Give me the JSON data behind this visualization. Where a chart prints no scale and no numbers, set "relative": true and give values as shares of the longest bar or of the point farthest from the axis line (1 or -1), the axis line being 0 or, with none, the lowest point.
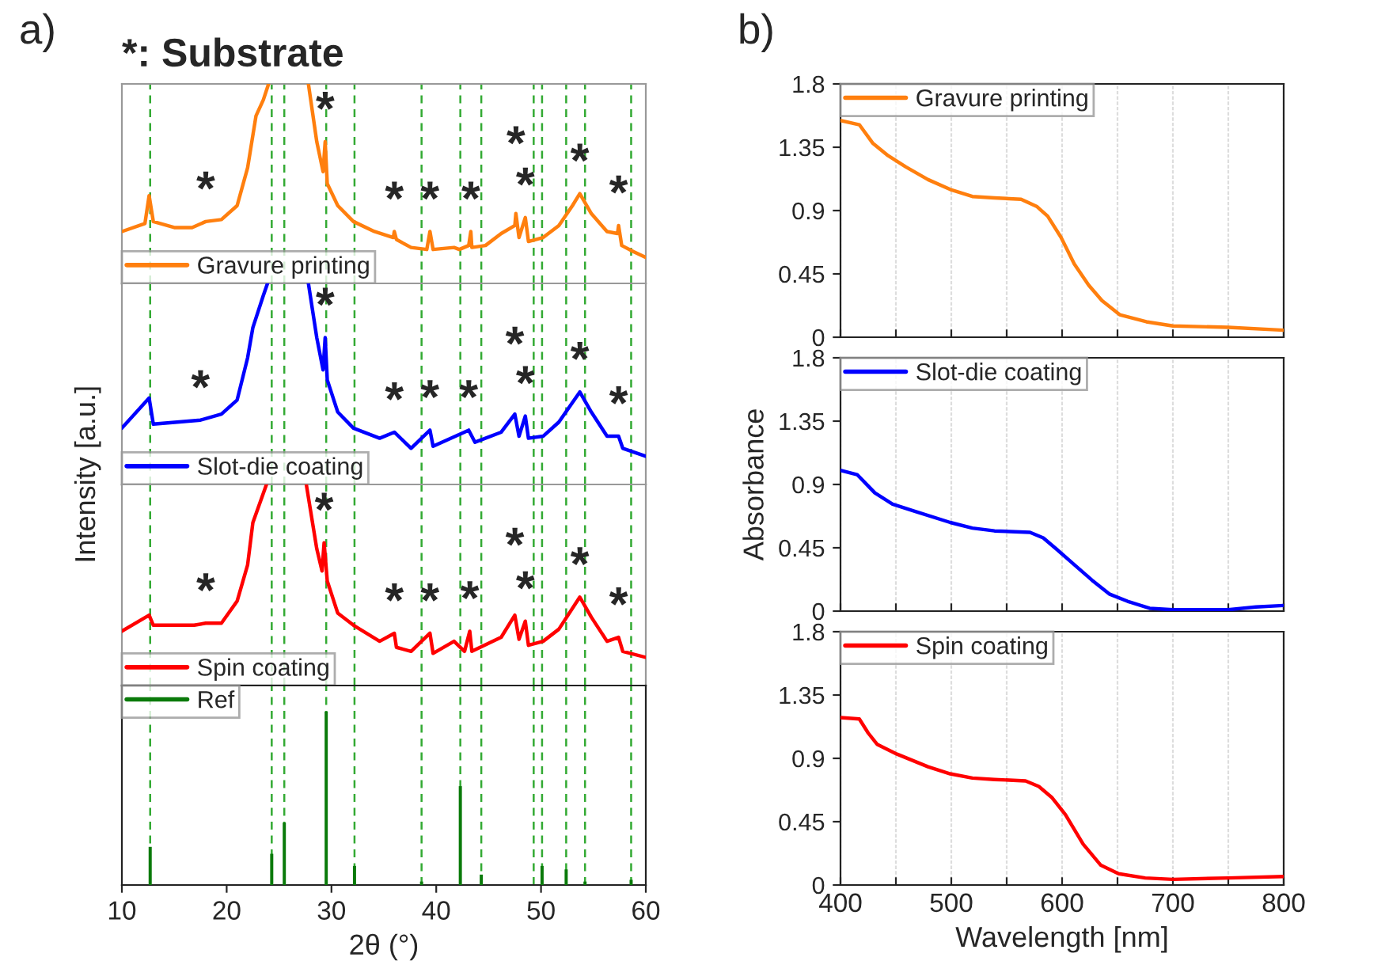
{
  "chart_data": [
    {
      "type": "line",
      "title": "*: Substrate",
      "relative": true,
      "xlim": [
        10,
        60
      ],
      "tick_labels": false,
      "legend": "bottom left",
      "annotations": [
        "a)",
        {
          "text": "*",
          "x": 18,
          "y": 0.31
        },
        {
          "text": "*",
          "x": 29.4,
          "y": 0.71
        },
        {
          "text": "*",
          "x": 36,
          "y": 0.26
        },
        {
          "text": "*",
          "x": 39.4,
          "y": 0.26
        },
        {
          "text": "*",
          "x": 43.3,
          "y": 0.26
        },
        {
          "text": "*",
          "x": 47.6,
          "y": 0.35
        },
        {
          "text": "*",
          "x": 48.5,
          "y": 0.33
        },
        {
          "text": "*",
          "x": 53.7,
          "y": 0.45
        },
        {
          "text": "*",
          "x": 57.4,
          "y": 0.29
        }
      ],
      "ref_lines": [
        {
          "axis": "x",
          "value": 12.7,
          "color": "#33aa33",
          "line_style": "dashed"
        },
        {
          "axis": "x",
          "value": 24.3,
          "color": "#33aa33",
          "line_style": "dashed"
        },
        {
          "axis": "x",
          "value": 25.5,
          "color": "#33aa33",
          "line_style": "dashed"
        },
        {
          "axis": "x",
          "value": 29.5,
          "color": "#33aa33",
          "line_style": "dashed"
        },
        {
          "axis": "x",
          "value": 32.2,
          "color": "#33aa33",
          "line_style": "dashed"
        },
        {
          "axis": "x",
          "value": 38.6,
          "color": "#33aa33",
          "line_style": "dashed"
        },
        {
          "axis": "x",
          "value": 42.3,
          "color": "#33aa33",
          "line_style": "dashed"
        },
        {
          "axis": "x",
          "value": 44.3,
          "color": "#33aa33",
          "line_style": "dashed"
        },
        {
          "axis": "x",
          "value": 49.3,
          "color": "#33aa33",
          "line_style": "dashed"
        },
        {
          "axis": "x",
          "value": 50.1,
          "color": "#33aa33",
          "line_style": "dashed"
        },
        {
          "axis": "x",
          "value": 52.4,
          "color": "#33aa33",
          "line_style": "dashed"
        },
        {
          "axis": "x",
          "value": 54.2,
          "color": "#33aa33",
          "line_style": "dashed"
        },
        {
          "axis": "x",
          "value": 58.6,
          "color": "#33aa33",
          "line_style": "dashed"
        }
      ],
      "series": [
        {
          "name": "Gravure printing",
          "color": "#ff7f0e",
          "x": [
            10,
            12.2,
            12.6,
            13,
            15,
            16.7,
            18,
            19.5,
            21,
            22,
            22.8,
            23.5,
            24,
            null,
            27.8,
            28.6,
            29.2,
            29.4,
            29.6,
            30.6,
            32.1,
            34.1,
            35.9,
            36,
            36.2,
            37.6,
            39.1,
            39.4,
            39.7,
            41.7,
            42.2,
            43.1,
            43.3,
            43.4,
            44.7,
            46.2,
            47.5,
            47.6,
            47.9,
            48.5,
            48.8,
            50.2,
            51.7,
            53,
            53.7,
            54.8,
            56.3,
            57.3,
            57.4,
            57.7,
            58.8,
            60
          ],
          "values": [
            0.26,
            0.3,
            0.44,
            0.31,
            0.28,
            0.28,
            0.31,
            0.32,
            0.39,
            0.58,
            0.84,
            0.92,
            1.0,
            null,
            1.0,
            0.71,
            0.56,
            0.71,
            0.5,
            0.39,
            0.31,
            0.26,
            0.23,
            0.26,
            0.22,
            0.18,
            0.17,
            0.26,
            0.17,
            0.18,
            0.17,
            0.19,
            0.26,
            0.18,
            0.19,
            0.25,
            0.29,
            0.35,
            0.23,
            0.33,
            0.21,
            0.23,
            0.29,
            0.39,
            0.45,
            0.35,
            0.26,
            0.25,
            0.29,
            0.19,
            0.16,
            0.13
          ]
        }
      ]
    },
    {
      "type": "line",
      "ylabel": "Intensity [a.u.]",
      "relative": true,
      "xlim": [
        10,
        60
      ],
      "tick_labels": false,
      "legend": "bottom left",
      "annotations": [
        {
          "text": "*",
          "x": 17.5,
          "y": 0.32
        },
        {
          "text": "*",
          "x": 29.4,
          "y": 0.73
        },
        {
          "text": "*",
          "x": 36,
          "y": 0.26
        },
        {
          "text": "*",
          "x": 39.4,
          "y": 0.27
        },
        {
          "text": "*",
          "x": 43.1,
          "y": 0.27
        },
        {
          "text": "*",
          "x": 47.5,
          "y": 0.35
        },
        {
          "text": "*",
          "x": 48.5,
          "y": 0.34
        },
        {
          "text": "*",
          "x": 53.7,
          "y": 0.46
        },
        {
          "text": "*",
          "x": 57.4,
          "y": 0.24
        }
      ],
      "ref_lines": [
        {
          "axis": "x",
          "value": 12.7,
          "color": "#33aa33",
          "line_style": "dashed"
        },
        {
          "axis": "x",
          "value": 24.3,
          "color": "#33aa33",
          "line_style": "dashed"
        },
        {
          "axis": "x",
          "value": 25.5,
          "color": "#33aa33",
          "line_style": "dashed"
        },
        {
          "axis": "x",
          "value": 29.5,
          "color": "#33aa33",
          "line_style": "dashed"
        },
        {
          "axis": "x",
          "value": 32.2,
          "color": "#33aa33",
          "line_style": "dashed"
        },
        {
          "axis": "x",
          "value": 38.6,
          "color": "#33aa33",
          "line_style": "dashed"
        },
        {
          "axis": "x",
          "value": 42.3,
          "color": "#33aa33",
          "line_style": "dashed"
        },
        {
          "axis": "x",
          "value": 44.3,
          "color": "#33aa33",
          "line_style": "dashed"
        },
        {
          "axis": "x",
          "value": 49.3,
          "color": "#33aa33",
          "line_style": "dashed"
        },
        {
          "axis": "x",
          "value": 50.1,
          "color": "#33aa33",
          "line_style": "dashed"
        },
        {
          "axis": "x",
          "value": 52.4,
          "color": "#33aa33",
          "line_style": "dashed"
        },
        {
          "axis": "x",
          "value": 54.2,
          "color": "#33aa33",
          "line_style": "dashed"
        },
        {
          "axis": "x",
          "value": 58.6,
          "color": "#33aa33",
          "line_style": "dashed"
        }
      ],
      "series": [
        {
          "name": "Slot-die coating",
          "color": "#0000ff",
          "x": [
            10,
            12.6,
            13,
            17.5,
            19.5,
            21,
            22,
            22.5,
            23.5,
            23.9,
            null,
            27.8,
            28.6,
            29.2,
            29.4,
            29.6,
            30.6,
            32.1,
            34.6,
            36,
            37.6,
            39.4,
            39.7,
            43.1,
            43.7,
            46.2,
            47.5,
            47.9,
            48.5,
            48.8,
            50.2,
            51.7,
            53.7,
            54.8,
            56.3,
            57.4,
            57.8,
            60
          ],
          "values": [
            0.28,
            0.43,
            0.3,
            0.32,
            0.35,
            0.42,
            0.63,
            0.78,
            0.94,
            1.0,
            null,
            1.0,
            0.73,
            0.57,
            0.73,
            0.52,
            0.36,
            0.28,
            0.23,
            0.26,
            0.18,
            0.27,
            0.19,
            0.27,
            0.21,
            0.26,
            0.35,
            0.24,
            0.34,
            0.23,
            0.24,
            0.31,
            0.46,
            0.36,
            0.24,
            0.24,
            0.18,
            0.14
          ]
        }
      ]
    },
    {
      "type": "line",
      "relative": true,
      "xlim": [
        10,
        60
      ],
      "tick_labels": false,
      "legend": "bottom left",
      "annotations": [
        {
          "text": "*",
          "x": 18,
          "y": 0.31
        },
        {
          "text": "*",
          "x": 29.3,
          "y": 0.71
        },
        {
          "text": "*",
          "x": 36,
          "y": 0.26
        },
        {
          "text": "*",
          "x": 39.4,
          "y": 0.26
        },
        {
          "text": "*",
          "x": 43.2,
          "y": 0.27
        },
        {
          "text": "*",
          "x": 47.5,
          "y": 0.35
        },
        {
          "text": "*",
          "x": 48.5,
          "y": 0.32
        },
        {
          "text": "*",
          "x": 53.7,
          "y": 0.44
        },
        {
          "text": "*",
          "x": 57.4,
          "y": 0.24
        }
      ],
      "ref_lines": [
        {
          "axis": "x",
          "value": 12.7,
          "color": "#33aa33",
          "line_style": "dashed"
        },
        {
          "axis": "x",
          "value": 24.3,
          "color": "#33aa33",
          "line_style": "dashed"
        },
        {
          "axis": "x",
          "value": 25.5,
          "color": "#33aa33",
          "line_style": "dashed"
        },
        {
          "axis": "x",
          "value": 29.5,
          "color": "#33aa33",
          "line_style": "dashed"
        },
        {
          "axis": "x",
          "value": 32.2,
          "color": "#33aa33",
          "line_style": "dashed"
        },
        {
          "axis": "x",
          "value": 38.6,
          "color": "#33aa33",
          "line_style": "dashed"
        },
        {
          "axis": "x",
          "value": 42.3,
          "color": "#33aa33",
          "line_style": "dashed"
        },
        {
          "axis": "x",
          "value": 44.3,
          "color": "#33aa33",
          "line_style": "dashed"
        },
        {
          "axis": "x",
          "value": 49.3,
          "color": "#33aa33",
          "line_style": "dashed"
        },
        {
          "axis": "x",
          "value": 50.1,
          "color": "#33aa33",
          "line_style": "dashed"
        },
        {
          "axis": "x",
          "value": 52.4,
          "color": "#33aa33",
          "line_style": "dashed"
        },
        {
          "axis": "x",
          "value": 54.2,
          "color": "#33aa33",
          "line_style": "dashed"
        },
        {
          "axis": "x",
          "value": 58.6,
          "color": "#33aa33",
          "line_style": "dashed"
        }
      ],
      "series": [
        {
          "name": "Spin coating",
          "color": "#ff0000",
          "x": [
            10,
            12.6,
            13,
            16.9,
            18,
            19.5,
            21,
            22,
            22.5,
            23.8,
            null,
            27.6,
            28.6,
            29.1,
            29.3,
            29.6,
            30.6,
            32.1,
            34.6,
            36,
            36.2,
            37.6,
            39.4,
            39.7,
            41.7,
            42.7,
            43.2,
            43.4,
            46.2,
            47.5,
            47.9,
            48.5,
            48.8,
            50.2,
            51.7,
            53.7,
            54.8,
            56.3,
            57.4,
            57.8,
            60
          ],
          "values": [
            0.27,
            0.35,
            0.3,
            0.3,
            0.31,
            0.31,
            0.42,
            0.6,
            0.81,
            1.0,
            null,
            1.0,
            0.68,
            0.57,
            0.71,
            0.52,
            0.36,
            0.3,
            0.22,
            0.26,
            0.19,
            0.17,
            0.26,
            0.16,
            0.22,
            0.17,
            0.27,
            0.17,
            0.24,
            0.35,
            0.23,
            0.32,
            0.2,
            0.22,
            0.28,
            0.44,
            0.34,
            0.22,
            0.24,
            0.17,
            0.14
          ]
        }
      ]
    },
    {
      "type": "bar",
      "xlabel": "2θ (°)",
      "relative": true,
      "xlim": [
        10,
        60
      ],
      "xticks": [
        10,
        20,
        30,
        40,
        50,
        60
      ],
      "tick_labels": "x",
      "legend": "top left",
      "ref_lines": [
        {
          "axis": "x",
          "value": 12.7,
          "color": "#33aa33",
          "line_style": "dashed"
        },
        {
          "axis": "x",
          "value": 24.3,
          "color": "#33aa33",
          "line_style": "dashed"
        },
        {
          "axis": "x",
          "value": 25.5,
          "color": "#33aa33",
          "line_style": "dashed"
        },
        {
          "axis": "x",
          "value": 29.5,
          "color": "#33aa33",
          "line_style": "dashed"
        },
        {
          "axis": "x",
          "value": 32.2,
          "color": "#33aa33",
          "line_style": "dashed"
        },
        {
          "axis": "x",
          "value": 38.6,
          "color": "#33aa33",
          "line_style": "dashed"
        },
        {
          "axis": "x",
          "value": 42.3,
          "color": "#33aa33",
          "line_style": "dashed"
        },
        {
          "axis": "x",
          "value": 44.3,
          "color": "#33aa33",
          "line_style": "dashed"
        },
        {
          "axis": "x",
          "value": 49.3,
          "color": "#33aa33",
          "line_style": "dashed"
        },
        {
          "axis": "x",
          "value": 50.1,
          "color": "#33aa33",
          "line_style": "dashed"
        },
        {
          "axis": "x",
          "value": 52.4,
          "color": "#33aa33",
          "line_style": "dashed"
        },
        {
          "axis": "x",
          "value": 54.2,
          "color": "#33aa33",
          "line_style": "dashed"
        },
        {
          "axis": "x",
          "value": 58.6,
          "color": "#33aa33",
          "line_style": "dashed"
        }
      ],
      "x": [
        12.7,
        24.3,
        25.5,
        29.5,
        32.2,
        38.6,
        42.3,
        44.3,
        50.1,
        52.4,
        54.2,
        58.6
      ],
      "series": [
        {
          "name": "Ref",
          "color": "#0a7a0a",
          "values": [
            0.22,
            0.18,
            0.36,
            1.0,
            0.11,
            0.02,
            0.57,
            0.06,
            0.11,
            0.09,
            0.02,
            0.03
          ]
        }
      ]
    },
    {
      "type": "line",
      "xlim": [
        400,
        800
      ],
      "xticks": [
        400,
        {
          "value": 450,
          "label": null
        },
        500,
        {
          "value": 550,
          "label": null
        },
        600,
        {
          "value": 650,
          "label": null
        },
        700,
        {
          "value": 750,
          "label": null
        },
        800
      ],
      "ylim": [
        0,
        1.8
      ],
      "yticks": [
        0,
        0.45,
        0.9,
        1.35,
        1.8
      ],
      "tick_labels": "y",
      "grid": "x",
      "legend": "top left",
      "annotations": [
        "b)"
      ],
      "series": [
        {
          "name": "Gravure printing",
          "color": "#ff7f0e",
          "x": [
            400,
            417,
            429,
            443,
            459,
            479,
            499,
            519,
            539,
            563,
            577,
            587,
            599,
            611,
            624,
            636,
            652,
            676,
            700,
            750,
            800
          ],
          "values": [
            1.54,
            1.51,
            1.38,
            1.29,
            1.21,
            1.12,
            1.05,
            1.0,
            0.99,
            0.98,
            0.93,
            0.86,
            0.71,
            0.52,
            0.37,
            0.26,
            0.16,
            0.11,
            0.08,
            0.07,
            0.05
          ]
        }
      ]
    },
    {
      "type": "line",
      "ylabel": "Absorbance",
      "xlim": [
        400,
        800
      ],
      "xticks": [
        400,
        {
          "value": 450,
          "label": null
        },
        500,
        {
          "value": 550,
          "label": null
        },
        600,
        {
          "value": 650,
          "label": null
        },
        700,
        {
          "value": 750,
          "label": null
        },
        800
      ],
      "ylim": [
        0,
        1.8
      ],
      "yticks": [
        0,
        0.45,
        0.9,
        1.35,
        1.8
      ],
      "tick_labels": "y",
      "grid": "x",
      "legend": "top left",
      "series": [
        {
          "name": "Slot-die coating",
          "color": "#0000ff",
          "x": [
            400,
            415,
            431,
            447,
            467,
            499,
            519,
            539,
            571,
            583,
            595,
            611,
            627,
            643,
            659,
            679,
            700,
            750,
            775,
            800
          ],
          "values": [
            1.0,
            0.97,
            0.84,
            0.76,
            0.71,
            0.63,
            0.59,
            0.57,
            0.56,
            0.52,
            0.44,
            0.33,
            0.22,
            0.12,
            0.07,
            0.02,
            0.01,
            0.01,
            0.03,
            0.04
          ]
        }
      ]
    },
    {
      "type": "line",
      "xlabel": "Wavelength [nm]",
      "xlim": [
        400,
        800
      ],
      "xticks": [
        400,
        {
          "value": 450,
          "label": null
        },
        500,
        {
          "value": 550,
          "label": null
        },
        600,
        {
          "value": 650,
          "label": null
        },
        700,
        {
          "value": 750,
          "label": null
        },
        800
      ],
      "ylim": [
        0,
        1.8
      ],
      "yticks": [
        0,
        0.45,
        0.9,
        1.35,
        1.8
      ],
      "grid": "x",
      "legend": "top left",
      "series": [
        {
          "name": "Spin coating",
          "color": "#ff0000",
          "x": [
            400,
            417,
            425,
            433,
            451,
            479,
            499,
            519,
            539,
            567,
            579,
            591,
            603,
            619,
            635,
            651,
            675,
            700,
            750,
            800
          ],
          "values": [
            1.19,
            1.18,
            1.08,
            1.0,
            0.93,
            0.84,
            0.79,
            0.76,
            0.75,
            0.74,
            0.7,
            0.62,
            0.5,
            0.29,
            0.14,
            0.08,
            0.05,
            0.04,
            0.05,
            0.06
          ]
        }
      ]
    }
  ]
}
